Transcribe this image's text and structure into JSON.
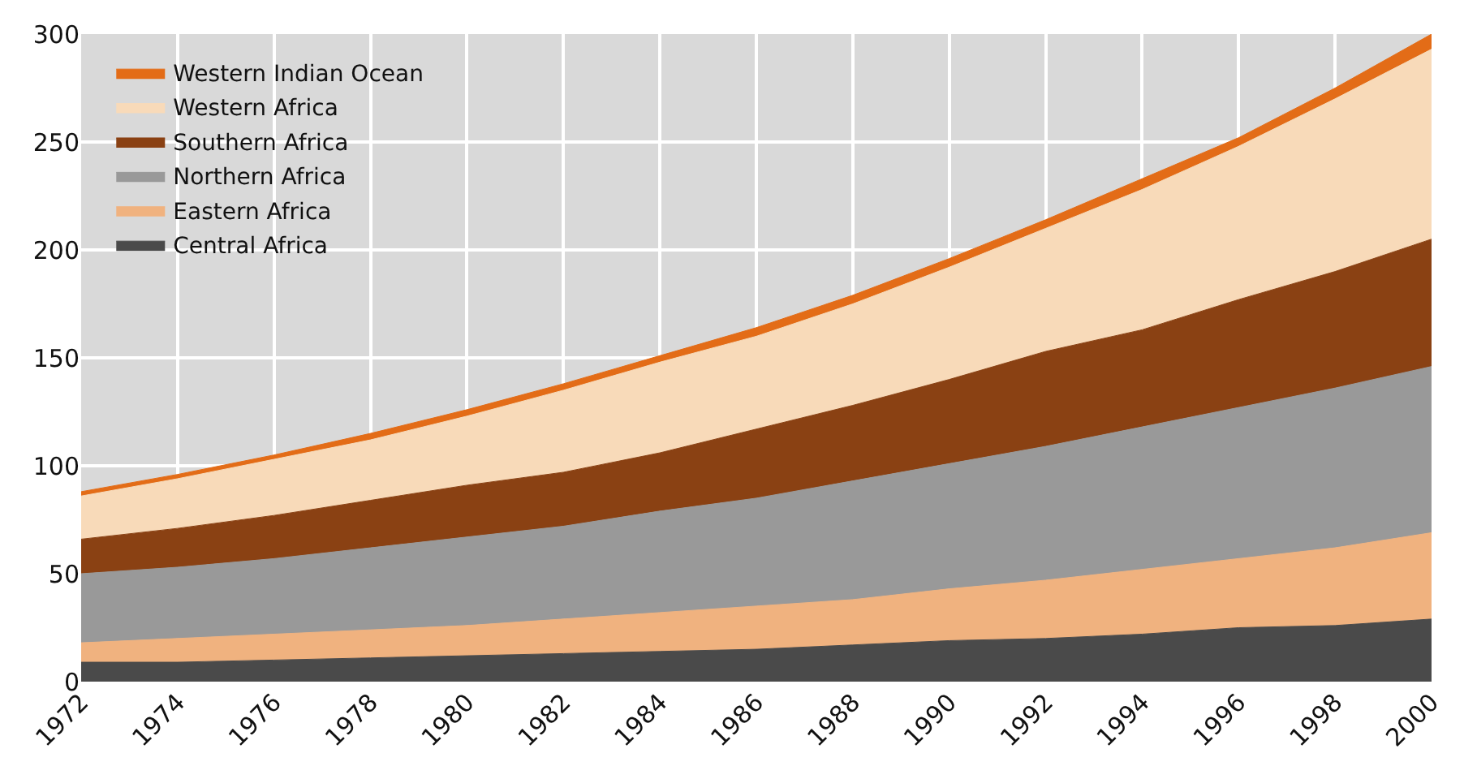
{
  "chart_data": {
    "type": "area",
    "stacked": true,
    "x": [
      1972,
      1974,
      1976,
      1978,
      1980,
      1982,
      1984,
      1986,
      1988,
      1990,
      1992,
      1994,
      1996,
      1998,
      2000
    ],
    "series": [
      {
        "name": "Central Africa",
        "color": "#4a4a4a",
        "values": [
          9,
          9,
          10,
          11,
          12,
          13,
          14,
          15,
          17,
          19,
          20,
          22,
          25,
          26,
          29
        ]
      },
      {
        "name": "Eastern Africa",
        "color": "#f0b27f",
        "values": [
          9,
          11,
          12,
          13,
          14,
          16,
          18,
          20,
          21,
          24,
          27,
          30,
          32,
          36,
          40
        ]
      },
      {
        "name": "Northern Africa",
        "color": "#999999",
        "values": [
          32,
          33,
          35,
          38,
          41,
          43,
          47,
          50,
          55,
          58,
          62,
          66,
          70,
          74,
          77
        ]
      },
      {
        "name": "Southern Africa",
        "color": "#8a4113",
        "values": [
          16,
          18,
          20,
          22,
          24,
          25,
          27,
          32,
          35,
          39,
          44,
          45,
          50,
          54,
          59
        ]
      },
      {
        "name": "Western Africa",
        "color": "#f8dab9",
        "values": [
          20,
          23,
          26,
          28,
          32,
          38,
          42,
          43,
          47,
          52,
          57,
          65,
          71,
          80,
          88
        ]
      },
      {
        "name": "Western Indian Ocean",
        "color": "#e36c17",
        "values": [
          2,
          2,
          2,
          3,
          3,
          3,
          3,
          4,
          4,
          4,
          4,
          5,
          4,
          5,
          7
        ]
      }
    ],
    "xlim": [
      1972,
      2000
    ],
    "xticks": [
      1972,
      1974,
      1976,
      1978,
      1980,
      1982,
      1984,
      1986,
      1988,
      1990,
      1992,
      1994,
      1996,
      1998,
      2000
    ],
    "ylim": [
      0,
      300
    ],
    "yticks": [
      0,
      50,
      100,
      150,
      200,
      250,
      300
    ],
    "grid": true,
    "legend": "top left"
  }
}
